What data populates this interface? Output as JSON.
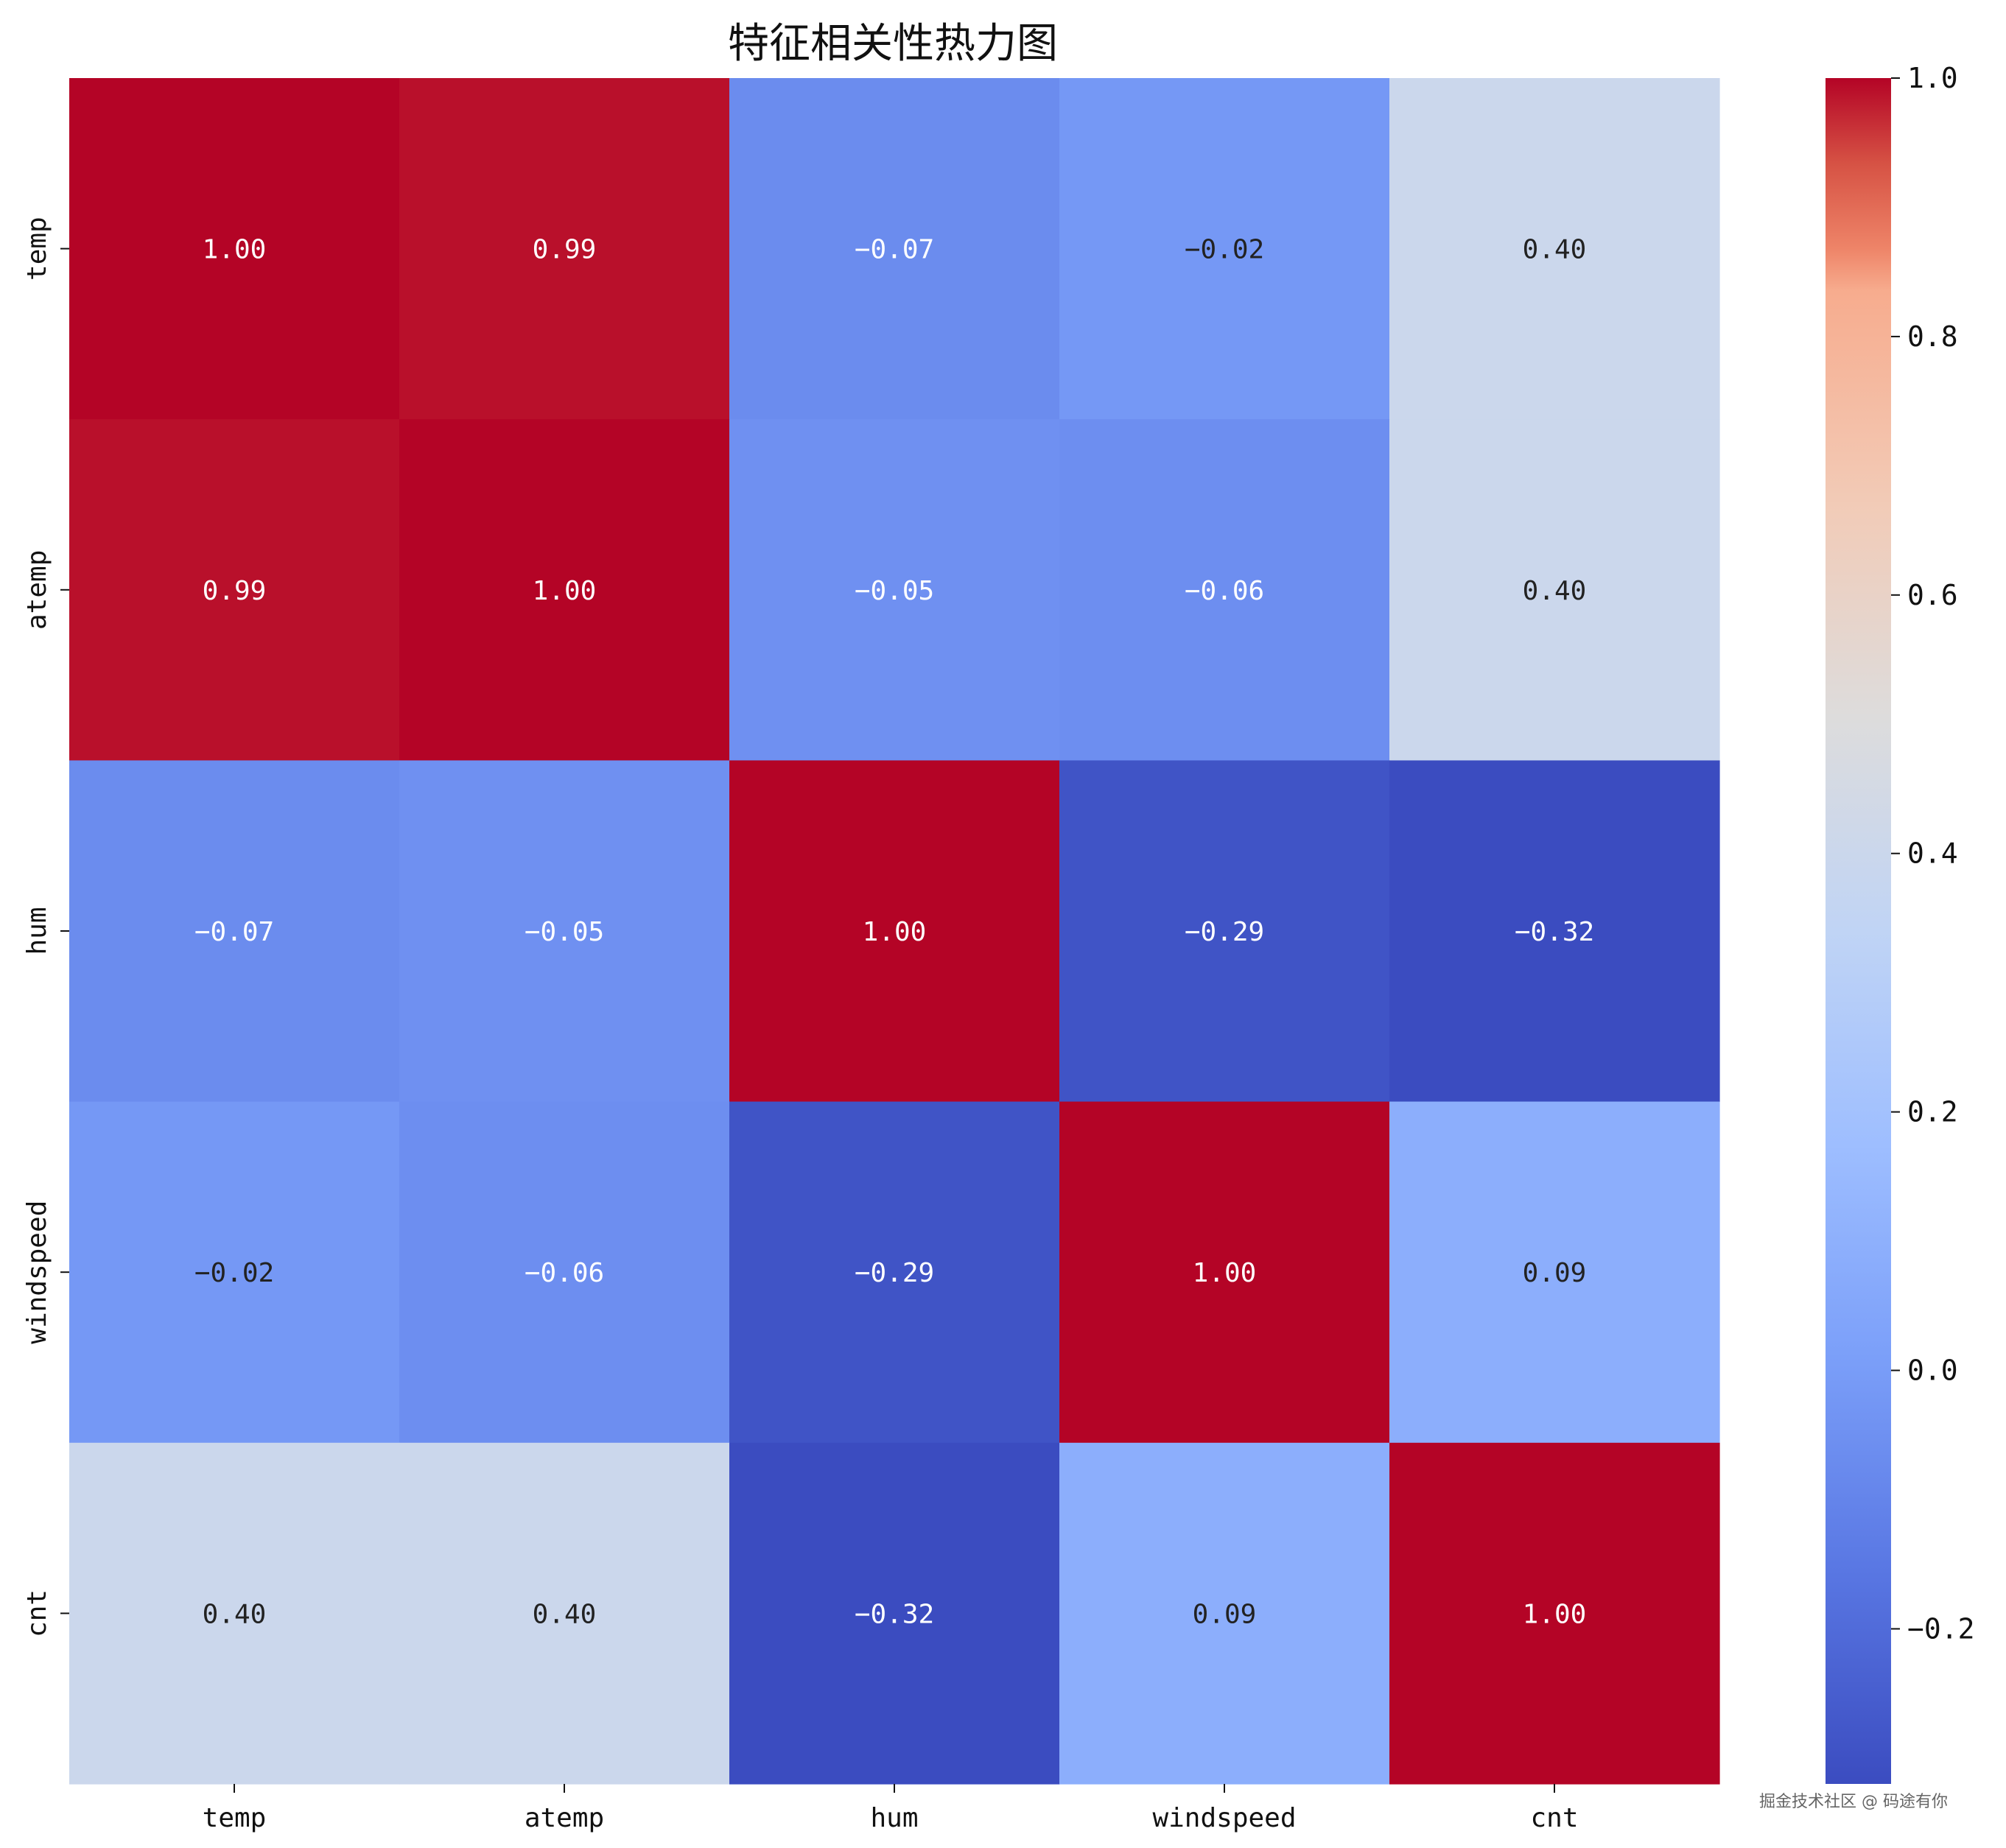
{
  "chart_data": {
    "type": "heatmap",
    "title": "特征相关性热力图",
    "x_labels": [
      "temp",
      "atemp",
      "hum",
      "windspeed",
      "cnt"
    ],
    "y_labels": [
      "temp",
      "atemp",
      "hum",
      "windspeed",
      "cnt"
    ],
    "values": [
      [
        1.0,
        0.99,
        -0.07,
        -0.02,
        0.4
      ],
      [
        0.99,
        1.0,
        -0.05,
        -0.06,
        0.4
      ],
      [
        -0.07,
        -0.05,
        1.0,
        -0.29,
        -0.32
      ],
      [
        -0.02,
        -0.06,
        -0.29,
        1.0,
        0.09
      ],
      [
        0.4,
        0.4,
        -0.32,
        0.09,
        1.0
      ]
    ],
    "cell_text": [
      [
        "1.00",
        "0.99",
        "−0.07",
        "−0.02",
        "0.40"
      ],
      [
        "0.99",
        "1.00",
        "−0.05",
        "−0.06",
        "0.40"
      ],
      [
        "−0.07",
        "−0.05",
        "1.00",
        "−0.29",
        "−0.32"
      ],
      [
        "−0.02",
        "−0.06",
        "−0.29",
        "1.00",
        "0.09"
      ],
      [
        "0.40",
        "0.40",
        "−0.32",
        "0.09",
        "1.00"
      ]
    ],
    "colormap": "coolwarm",
    "vmin": -0.32,
    "vmax": 1.0,
    "colorbar_ticks": [
      1.0,
      0.8,
      0.6,
      0.4,
      0.2,
      0.0,
      -0.2
    ],
    "colorbar_tick_labels": [
      "1.0",
      "0.8",
      "0.6",
      "0.4",
      "0.2",
      "0.0",
      "−0.2"
    ]
  },
  "watermark": "掘金技术社区 @ 码途有你"
}
